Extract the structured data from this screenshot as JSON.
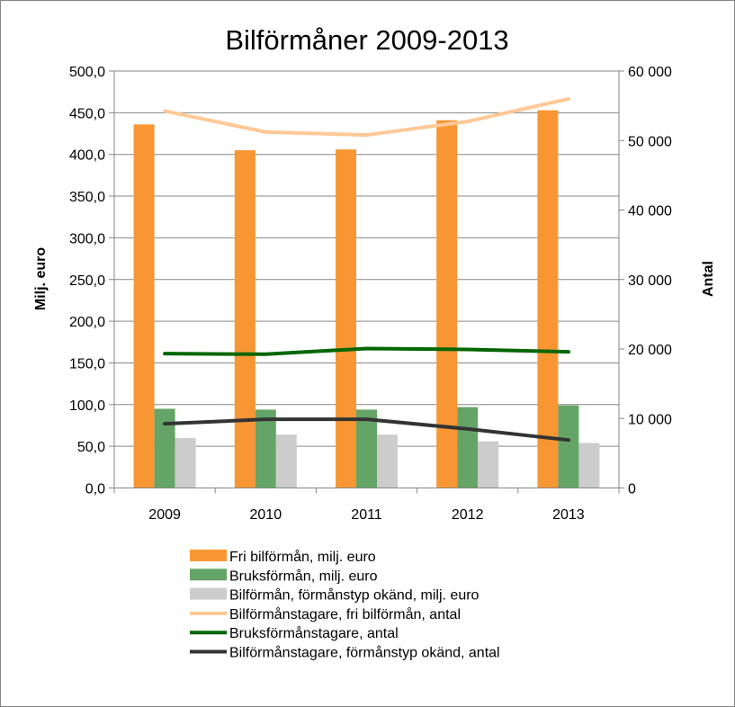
{
  "chart_data": {
    "type": "bar",
    "title": "Bilförmåner 2009-2013",
    "categories": [
      "2009",
      "2010",
      "2011",
      "2012",
      "2013"
    ],
    "ylabel": "Milj. euro",
    "y2label": "Antal",
    "ylim": [
      0,
      500
    ],
    "y2lim": [
      0,
      60000
    ],
    "yticks": [
      "0,0",
      "50,0",
      "100,0",
      "150,0",
      "200,0",
      "250,0",
      "300,0",
      "350,0",
      "400,0",
      "450,0",
      "500,0"
    ],
    "y2ticks": [
      "0",
      "10 000",
      "20 000",
      "30 000",
      "40 000",
      "50 000",
      "60 000"
    ],
    "grid": true,
    "legend_placement": "bottom",
    "series": [
      {
        "name": "Fri bilförmån, milj. euro",
        "kind": "bar",
        "axis": "left",
        "color": "#F79633",
        "values": [
          436,
          405,
          406,
          441,
          453
        ]
      },
      {
        "name": "Bruksförmån, milj. euro",
        "kind": "bar",
        "axis": "left",
        "color": "#64A466",
        "values": [
          95,
          94,
          94,
          97,
          99
        ]
      },
      {
        "name": "Bilförmån, förmånstyp okänd, milj. euro",
        "kind": "bar",
        "axis": "left",
        "color": "#CCCCCC",
        "values": [
          60,
          64,
          64,
          56,
          54
        ]
      },
      {
        "name": "Bilförmånstagare, fri bilförmån, antal",
        "kind": "line",
        "axis": "right",
        "color": "#FFC896",
        "values": [
          54250,
          51230,
          50800,
          52740,
          56000
        ]
      },
      {
        "name": "Bruksförmånstagare, antal",
        "kind": "line",
        "axis": "right",
        "color": "#006600",
        "values": [
          19330,
          19250,
          20070,
          19940,
          19590
        ]
      },
      {
        "name": "Bilförmånstagare, förmånstyp okänd, antal",
        "kind": "line",
        "axis": "right",
        "color": "#333333",
        "values": [
          9240,
          9880,
          9880,
          8500,
          6900
        ]
      }
    ]
  }
}
